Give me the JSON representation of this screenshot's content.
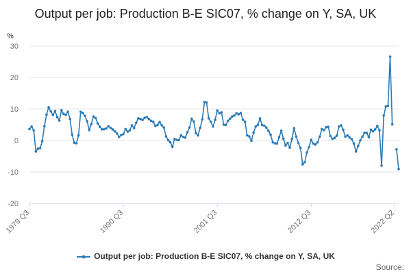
{
  "chart_data": {
    "type": "line",
    "title": "Output per job: Production B-E SIC07, % change on Y, SA, UK",
    "ylabel": "%",
    "xlabel": "",
    "ylim": [
      -20,
      30
    ],
    "yticks": [
      -20,
      -10,
      0,
      10,
      20,
      30
    ],
    "xtick_labels": [
      "1979 Q3",
      "1990 Q3",
      "2001 Q3",
      "2012 Q3",
      "2022 Q2"
    ],
    "grid": "horizontal",
    "legend_position": "bottom",
    "color": "#2c7bb6",
    "series": [
      {
        "name": "Output per job: Production B-E SIC07, % change on Y, SA, UK",
        "x_start": "1979 Q3",
        "values": [
          3.6,
          4.4,
          3.2,
          -3.5,
          -2.6,
          -2.5,
          -0.2,
          4.5,
          8.2,
          10.5,
          9.2,
          8.1,
          9.3,
          7.4,
          6.3,
          9.6,
          8.4,
          8.1,
          9.1,
          6.8,
          1.8,
          -0.7,
          -0.9,
          1.6,
          9.1,
          8.7,
          7.8,
          6.1,
          3.3,
          5.2,
          7.6,
          7.1,
          5.4,
          4.3,
          3.5,
          3.6,
          3.8,
          4.5,
          4.0,
          3.5,
          2.9,
          2.2,
          1.1,
          1.7,
          2.0,
          3.6,
          2.8,
          3.2,
          4.8,
          3.9,
          5.6,
          7.0,
          6.8,
          6.5,
          7.2,
          7.4,
          6.8,
          6.2,
          5.9,
          4.6,
          4.9,
          5.8,
          4.8,
          4.1,
          1.3,
          0.1,
          -0.6,
          -2.0,
          0.4,
          0.2,
          0.1,
          1.6,
          1.1,
          0.9,
          2.6,
          4.1,
          6.9,
          6.0,
          2.3,
          1.6,
          4.0,
          6.7,
          12.2,
          12.0,
          7.0,
          5.9,
          4.4,
          6.5,
          9.5,
          8.6,
          8.9,
          5.0,
          4.9,
          6.2,
          6.9,
          7.6,
          7.9,
          8.6,
          8.3,
          8.7,
          6.6,
          5.9,
          1.6,
          1.3,
          -0.1,
          2.5,
          4.4,
          4.9,
          7.0,
          4.9,
          4.7,
          4.1,
          3.0,
          1.8,
          -0.6,
          -0.9,
          -1.0,
          1.0,
          3.1,
          0.5,
          -1.6,
          -0.8,
          -2.3,
          0.5,
          3.9,
          1.2,
          -0.8,
          -2.4,
          -7.6,
          -6.9,
          -3.8,
          -2.1,
          0.2,
          -1.0,
          -1.3,
          -0.6,
          1.2,
          3.6,
          3.3,
          4.2,
          4.3,
          1.4,
          0.5,
          0.8,
          1.5,
          4.4,
          4.8,
          3.4,
          1.2,
          1.6,
          0.9,
          0.4,
          -1.0,
          -3.5,
          -1.8,
          0.0,
          1.2,
          2.4,
          2.4,
          1.0,
          3.4,
          2.9,
          3.5,
          4.6,
          3.2,
          -8.0,
          7.9,
          10.8,
          11.0,
          26.6,
          5.1,
          null,
          -2.8,
          -9.1
        ]
      }
    ]
  },
  "legend": {
    "label": "Output per job: Production B-E SIC07, % change on Y, SA, UK"
  },
  "footer": {
    "source_label": "Source:"
  }
}
